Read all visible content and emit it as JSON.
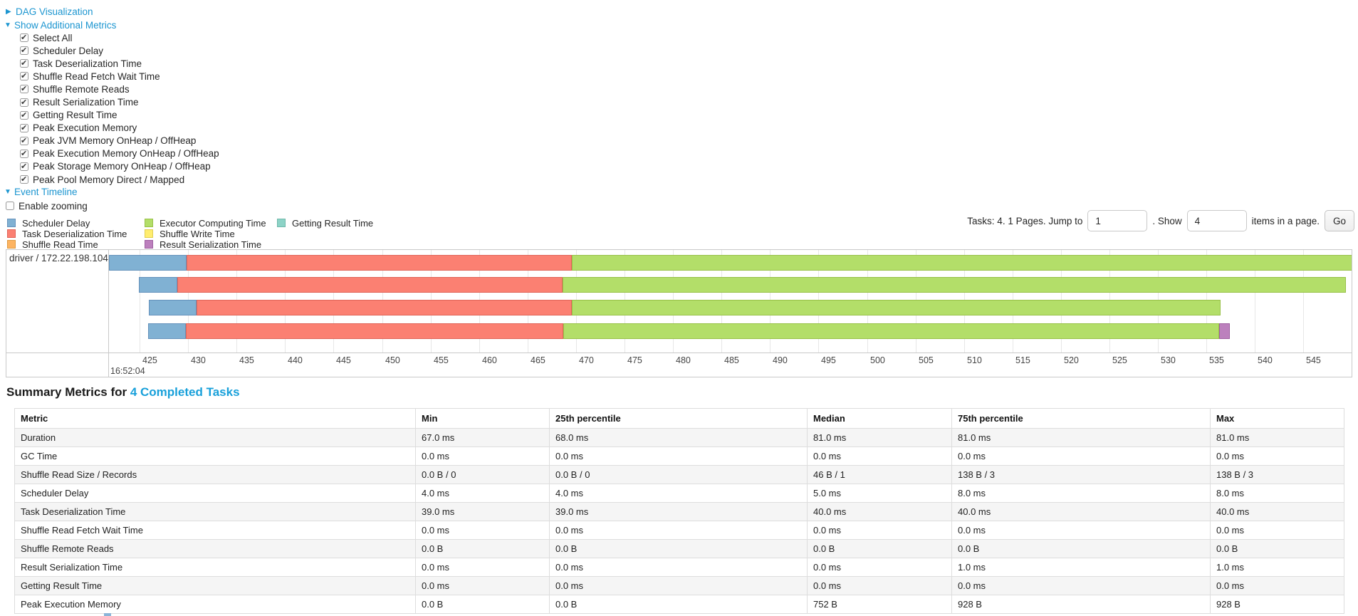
{
  "accent": "#1b95d0",
  "toggles": {
    "dag": {
      "label": "DAG Visualization",
      "arrow": "▶"
    },
    "additional_metrics": {
      "label": "Show Additional Metrics",
      "arrow": "▼"
    },
    "metric_checkboxes": [
      {
        "label": "Select All",
        "checked": true
      },
      {
        "label": "Scheduler Delay",
        "checked": true
      },
      {
        "label": "Task Deserialization Time",
        "checked": true
      },
      {
        "label": "Shuffle Read Fetch Wait Time",
        "checked": true
      },
      {
        "label": "Shuffle Remote Reads",
        "checked": true
      },
      {
        "label": "Result Serialization Time",
        "checked": true
      },
      {
        "label": "Getting Result Time",
        "checked": true
      },
      {
        "label": "Peak Execution Memory",
        "checked": true
      },
      {
        "label": "Peak JVM Memory OnHeap / OffHeap",
        "checked": true
      },
      {
        "label": "Peak Execution Memory OnHeap / OffHeap",
        "checked": true
      },
      {
        "label": "Peak Storage Memory OnHeap / OffHeap",
        "checked": true
      },
      {
        "label": "Peak Pool Memory Direct / Mapped",
        "checked": true
      }
    ],
    "event_timeline": {
      "label": "Event Timeline",
      "arrow": "▼"
    },
    "enable_zooming": {
      "label": "Enable zooming",
      "checked": false
    }
  },
  "palette": {
    "scheduler_delay": {
      "fill": "#80B1D3",
      "border": "#6592BC"
    },
    "task_deserialization": {
      "fill": "#FB8072",
      "border": "#E06458"
    },
    "shuffle_read": {
      "fill": "#FDB462",
      "border": "#E09A40"
    },
    "executor_computing": {
      "fill": "#B3DE69",
      "border": "#98C148"
    },
    "shuffle_write": {
      "fill": "#FFED6F",
      "border": "#E0CE50"
    },
    "result_serialization": {
      "fill": "#BC80BD",
      "border": "#9E5FA0"
    },
    "getting_result": {
      "fill": "#8DD3C7",
      "border": "#6FB8AA"
    }
  },
  "legend": {
    "columns": [
      [
        {
          "key": "scheduler_delay",
          "label": "Scheduler Delay"
        },
        {
          "key": "task_deserialization",
          "label": "Task Deserialization Time"
        },
        {
          "key": "shuffle_read",
          "label": "Shuffle Read Time"
        }
      ],
      [
        {
          "key": "executor_computing",
          "label": "Executor Computing Time"
        },
        {
          "key": "shuffle_write",
          "label": "Shuffle Write Time"
        },
        {
          "key": "result_serialization",
          "label": "Result Serialization Time"
        }
      ],
      [
        {
          "key": "getting_result",
          "label": "Getting Result Time"
        }
      ]
    ]
  },
  "pagination": {
    "tasks_text": "Tasks: 4. 1 Pages. Jump to",
    "jump_value": "1",
    "show_label": ". Show",
    "show_value": "4",
    "items_text": "items in a page.",
    "go_label": "Go"
  },
  "chart_data": {
    "type": "timeline",
    "row_label": "driver / 172.22.198.104",
    "axis": {
      "tick_start": 425,
      "tick_end": 550,
      "tick_step": 5,
      "start_time_label": "16:52:04",
      "visible_range": [
        421.3,
        550.2
      ]
    },
    "tasks": [
      {
        "segments": [
          {
            "key": "scheduler_delay",
            "start": 421.85,
            "end": 429.85
          },
          {
            "key": "task_deserialization",
            "start": 429.85,
            "end": 469.6
          },
          {
            "key": "executor_computing",
            "start": 469.6,
            "end": 550.6
          }
        ]
      },
      {
        "segments": [
          {
            "key": "scheduler_delay",
            "start": 424.93,
            "end": 428.9
          },
          {
            "key": "task_deserialization",
            "start": 428.9,
            "end": 468.6
          },
          {
            "key": "executor_computing",
            "start": 468.6,
            "end": 549.4
          }
        ]
      },
      {
        "segments": [
          {
            "key": "scheduler_delay",
            "start": 425.95,
            "end": 430.87
          },
          {
            "key": "task_deserialization",
            "start": 430.87,
            "end": 469.6
          },
          {
            "key": "executor_computing",
            "start": 469.6,
            "end": 536.45
          }
        ]
      },
      {
        "segments": [
          {
            "key": "scheduler_delay",
            "start": 425.88,
            "end": 429.77
          },
          {
            "key": "task_deserialization",
            "start": 429.77,
            "end": 468.68
          },
          {
            "key": "executor_computing",
            "start": 468.68,
            "end": 536.3
          },
          {
            "key": "result_serialization",
            "start": 536.3,
            "end": 537.4
          }
        ]
      }
    ]
  },
  "summary": {
    "heading_prefix": "Summary Metrics for ",
    "heading_link": "4 Completed Tasks",
    "columns": [
      "Metric",
      "Min",
      "25th percentile",
      "Median",
      "75th percentile",
      "Max"
    ],
    "rows": [
      {
        "metric": "Duration",
        "values": [
          "67.0 ms",
          "68.0 ms",
          "81.0 ms",
          "81.0 ms",
          "81.0 ms"
        ]
      },
      {
        "metric": "GC Time",
        "values": [
          "0.0 ms",
          "0.0 ms",
          "0.0 ms",
          "0.0 ms",
          "0.0 ms"
        ]
      },
      {
        "metric": "Shuffle Read Size / Records",
        "values": [
          "0.0 B / 0",
          "0.0 B / 0",
          "46 B / 1",
          "138 B / 3",
          "138 B / 3"
        ]
      },
      {
        "metric": "Scheduler Delay",
        "values": [
          "4.0 ms",
          "4.0 ms",
          "5.0 ms",
          "8.0 ms",
          "8.0 ms"
        ]
      },
      {
        "metric": "Task Deserialization Time",
        "values": [
          "39.0 ms",
          "39.0 ms",
          "40.0 ms",
          "40.0 ms",
          "40.0 ms"
        ]
      },
      {
        "metric": "Shuffle Read Fetch Wait Time",
        "values": [
          "0.0 ms",
          "0.0 ms",
          "0.0 ms",
          "0.0 ms",
          "0.0 ms"
        ]
      },
      {
        "metric": "Shuffle Remote Reads",
        "values": [
          "0.0 B",
          "0.0 B",
          "0.0 B",
          "0.0 B",
          "0.0 B"
        ]
      },
      {
        "metric": "Result Serialization Time",
        "values": [
          "0.0 ms",
          "0.0 ms",
          "0.0 ms",
          "1.0 ms",
          "1.0 ms"
        ]
      },
      {
        "metric": "Getting Result Time",
        "values": [
          "0.0 ms",
          "0.0 ms",
          "0.0 ms",
          "0.0 ms",
          "0.0 ms"
        ]
      },
      {
        "metric": "Peak Execution Memory",
        "values": [
          "0.0 B",
          "0.0 B",
          "752 B",
          "928 B",
          "928 B"
        ]
      }
    ]
  }
}
